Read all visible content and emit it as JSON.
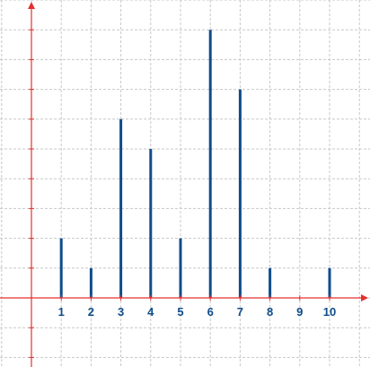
{
  "chart_data": {
    "type": "bar",
    "categories": [
      "1",
      "2",
      "3",
      "4",
      "5",
      "6",
      "7",
      "8",
      "9",
      "10"
    ],
    "values": [
      2,
      1,
      6,
      5,
      2,
      9,
      7,
      1,
      0,
      1
    ],
    "title": "",
    "xlabel": "",
    "ylabel": "",
    "xlim": [
      -1,
      11
    ],
    "ylim": [
      -2,
      10
    ],
    "grid": true,
    "bar_style": "stem",
    "colors": {
      "bars": "#0e4d8a",
      "axes": "#e53030",
      "grid": "#c8c8c8",
      "tick_labels": "#0e4d8a"
    }
  }
}
